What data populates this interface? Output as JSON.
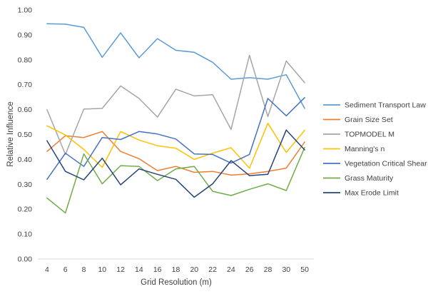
{
  "chart_data": {
    "type": "line",
    "title": "",
    "xlabel": "Grid Resolution (m)",
    "ylabel": "Relative Influence",
    "categories": [
      "4",
      "6",
      "8",
      "10",
      "12",
      "14",
      "16",
      "18",
      "20",
      "22",
      "24",
      "26",
      "28",
      "30",
      "50"
    ],
    "ylim": [
      0,
      1.0
    ],
    "y_ticks": [
      "0.00",
      "0.10",
      "0.20",
      "0.30",
      "0.40",
      "0.50",
      "0.60",
      "0.70",
      "0.80",
      "0.90",
      "1.00"
    ],
    "grid": false,
    "legend_position": "right",
    "series": [
      {
        "name": "Sediment Transport Law",
        "color": "#5B9BD5",
        "values": [
          0.945,
          0.943,
          0.93,
          0.81,
          0.908,
          0.808,
          0.885,
          0.838,
          0.83,
          0.79,
          0.722,
          0.728,
          0.722,
          0.74,
          0.605
        ]
      },
      {
        "name": "Grain Size Set",
        "color": "#ED7D31",
        "values": [
          0.432,
          0.495,
          0.488,
          0.512,
          0.432,
          0.403,
          0.355,
          0.372,
          0.348,
          0.352,
          0.337,
          0.342,
          0.352,
          0.365,
          0.47
        ]
      },
      {
        "name": "TOPMODEL M",
        "color": "#A5A5A5",
        "values": [
          0.6,
          0.42,
          0.602,
          0.605,
          0.695,
          0.645,
          0.57,
          0.682,
          0.655,
          0.66,
          0.52,
          0.818,
          0.572,
          0.795,
          0.708
        ]
      },
      {
        "name": "Manning's n",
        "color": "#FFC000",
        "values": [
          0.535,
          0.498,
          0.44,
          0.368,
          0.512,
          0.478,
          0.455,
          0.445,
          0.4,
          0.425,
          0.447,
          0.365,
          0.545,
          0.428,
          0.517
        ]
      },
      {
        "name": "Vegetation Critical Shear",
        "color": "#4472C4",
        "values": [
          0.32,
          0.425,
          0.372,
          0.488,
          0.48,
          0.512,
          0.502,
          0.482,
          0.422,
          0.42,
          0.385,
          0.42,
          0.645,
          0.575,
          0.648
        ]
      },
      {
        "name": "Grass Maturity",
        "color": "#70AD47",
        "values": [
          0.245,
          0.185,
          0.422,
          0.302,
          0.375,
          0.372,
          0.315,
          0.362,
          0.372,
          0.272,
          0.255,
          0.28,
          0.302,
          0.275,
          0.448
        ]
      },
      {
        "name": "Max Erode Limit",
        "color": "#264478",
        "values": [
          0.475,
          0.352,
          0.318,
          0.405,
          0.298,
          0.362,
          0.34,
          0.32,
          0.248,
          0.302,
          0.395,
          0.335,
          0.34,
          0.518,
          0.438
        ]
      }
    ]
  }
}
